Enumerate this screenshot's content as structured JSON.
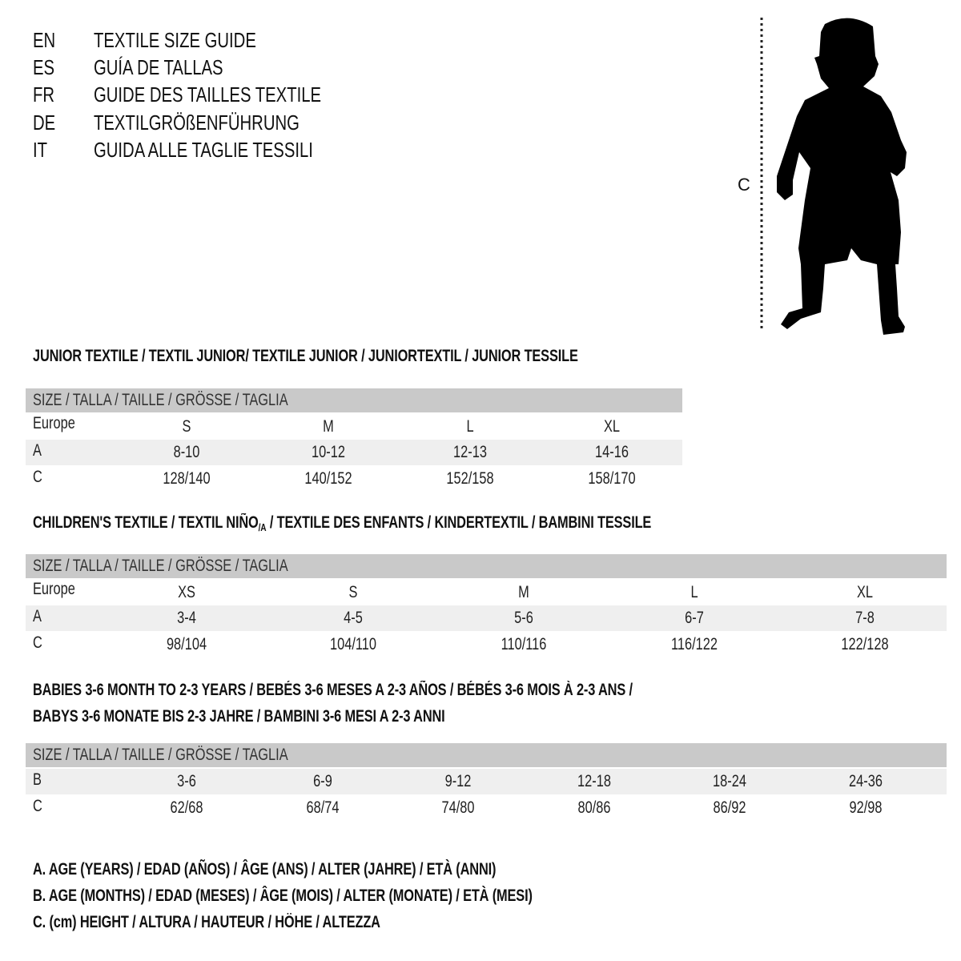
{
  "languages": [
    {
      "code": "EN",
      "text": "TEXTILE SIZE GUIDE"
    },
    {
      "code": "ES",
      "text": "GUÍA DE TALLAS"
    },
    {
      "code": "FR",
      "text": "GUIDE DES TAILLES TEXTILE"
    },
    {
      "code": "DE",
      "text": "TEXTILGRÖßENFÜHRUNG"
    },
    {
      "code": "IT",
      "text": "GUIDA ALLE TAGLIE TESSILI"
    }
  ],
  "figure": {
    "label": "C",
    "icon": "child-silhouette-icon"
  },
  "sections": [
    {
      "title_lines": [
        "JUNIOR TEXTILE / TEXTIL JUNIOR/ TEXTILE JUNIOR / JUNIORTEXTIL / JUNIOR TESSILE"
      ],
      "header": "SIZE / TALLA / TAILLE / GRÖSSE / TAGLIA",
      "rows": [
        {
          "label": "Europe",
          "values": [
            "S",
            "M",
            "L",
            "XL"
          ]
        },
        {
          "label": "A",
          "values": [
            "8-10",
            "10-12",
            "12-13",
            "14-16"
          ]
        },
        {
          "label": "C",
          "values": [
            "128/140",
            "140/152",
            "152/158",
            "158/170"
          ]
        }
      ]
    },
    {
      "title_pre": "CHILDREN'S TEXTILE / TEXTIL NIÑO",
      "title_sub": "/A",
      "title_post": " / TEXTILE DES ENFANTS / KINDERTEXTIL / BAMBINI TESSILE",
      "header": "SIZE / TALLA / TAILLE / GRÖSSE / TAGLIA",
      "rows": [
        {
          "label": "Europe",
          "values": [
            "XS",
            "S",
            "M",
            "L",
            "XL"
          ]
        },
        {
          "label": "A",
          "values": [
            "3-4",
            "4-5",
            "5-6",
            "6-7",
            "7-8"
          ]
        },
        {
          "label": "C",
          "values": [
            "98/104",
            "104/110",
            "110/116",
            "116/122",
            "122/128"
          ]
        }
      ]
    },
    {
      "title_lines": [
        "BABIES 3-6 MONTH TO 2-3 YEARS / BEBÉS 3-6 MESES A 2-3 AÑOS / BÉBÉS 3-6 MOIS À 2-3 ANS /",
        "BABYS 3-6 MONATE BIS 2-3 JAHRE / BAMBINI 3-6 MESI A 2-3 ANNI"
      ],
      "header": "SIZE / TALLA / TAILLE / GRÖSSE / TAGLIA",
      "rows": [
        {
          "label": "B",
          "values": [
            "3-6",
            "6-9",
            "9-12",
            "12-18",
            "18-24",
            "24-36"
          ]
        },
        {
          "label": "C",
          "values": [
            "62/68",
            "68/74",
            "74/80",
            "80/86",
            "86/92",
            "92/98"
          ]
        }
      ]
    }
  ],
  "legend": [
    "A. AGE (YEARS) / EDAD (AÑOS) / ÂGE (ANS) / ALTER (JAHRE) / ETÀ (ANNI)",
    "B. AGE (MONTHS) / EDAD (MESES) / ÂGE (MOIS) / ALTER (MONATE) / ETÀ (MESI)",
    "C. (cm) HEIGHT / ALTURA / HAUTEUR / HÖHE / ALTEZZA"
  ],
  "colors": {
    "header_bar": "#c9c9c9",
    "row_shade": "#efefef",
    "text": "#111111"
  }
}
